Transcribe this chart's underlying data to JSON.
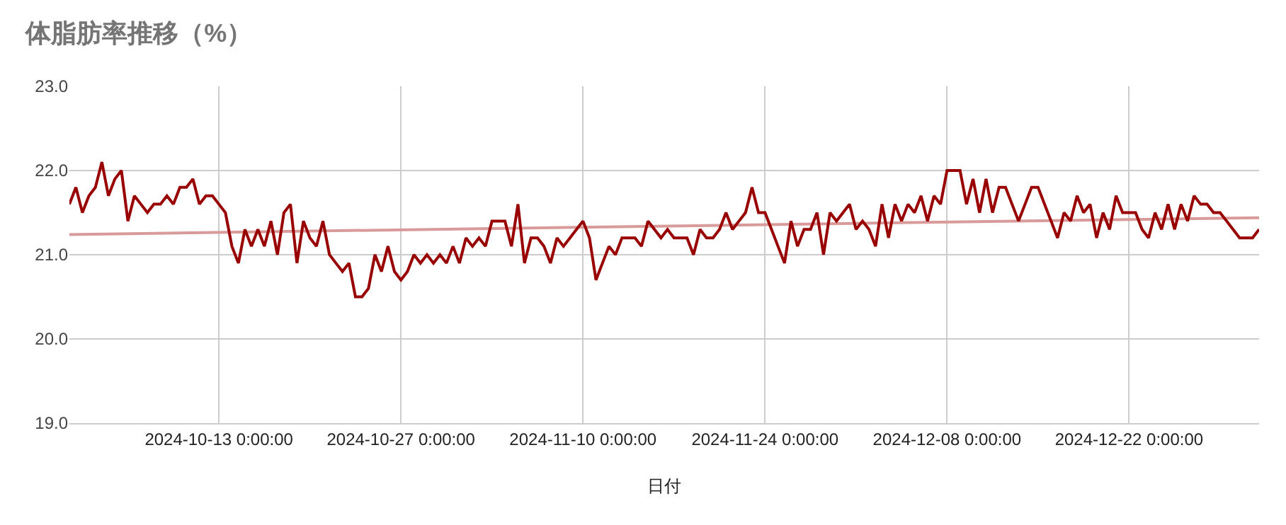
{
  "chart_data": {
    "type": "line",
    "title": "体脂肪率推移（%）",
    "xlabel": "日付",
    "xlim": [
      "2024-10-01T12:00",
      "2025-01-01T00:00"
    ],
    "xticks": [
      {
        "value": "2024-10-13",
        "label": "2024-10-13 0:00:00"
      },
      {
        "value": "2024-10-27",
        "label": "2024-10-27 0:00:00"
      },
      {
        "value": "2024-11-10",
        "label": "2024-11-10 0:00:00"
      },
      {
        "value": "2024-11-24",
        "label": "2024-11-24 0:00:00"
      },
      {
        "value": "2024-12-08",
        "label": "2024-12-08 0:00:00"
      },
      {
        "value": "2024-12-22",
        "label": "2024-12-22 0:00:00"
      }
    ],
    "ylim": [
      19,
      23
    ],
    "yticks": [
      {
        "value": 19,
        "label": "19.0"
      },
      {
        "value": 20,
        "label": "20.0"
      },
      {
        "value": 21,
        "label": "21.0"
      },
      {
        "value": 22,
        "label": "22.0"
      },
      {
        "value": 23,
        "label": "23.0"
      }
    ],
    "grid": true,
    "marker": "none",
    "line_style": "solid",
    "x": [
      "2024-10-01T12:00",
      "2024-10-02T00:00",
      "2024-10-02T12:00",
      "2024-10-03T00:00",
      "2024-10-03T12:00",
      "2024-10-04T00:00",
      "2024-10-04T12:00",
      "2024-10-05T00:00",
      "2024-10-05T12:00",
      "2024-10-06T00:00",
      "2024-10-06T12:00",
      "2024-10-07T00:00",
      "2024-10-07T12:00",
      "2024-10-08T00:00",
      "2024-10-08T12:00",
      "2024-10-09T00:00",
      "2024-10-09T12:00",
      "2024-10-10T00:00",
      "2024-10-10T12:00",
      "2024-10-11T00:00",
      "2024-10-11T12:00",
      "2024-10-12T00:00",
      "2024-10-12T12:00",
      "2024-10-13T00:00",
      "2024-10-13T12:00",
      "2024-10-14T00:00",
      "2024-10-14T12:00",
      "2024-10-15T00:00",
      "2024-10-15T12:00",
      "2024-10-16T00:00",
      "2024-10-16T12:00",
      "2024-10-17T00:00",
      "2024-10-17T12:00",
      "2024-10-18T00:00",
      "2024-10-18T12:00",
      "2024-10-19T00:00",
      "2024-10-19T12:00",
      "2024-10-20T00:00",
      "2024-10-20T12:00",
      "2024-10-21T00:00",
      "2024-10-21T12:00",
      "2024-10-22T00:00",
      "2024-10-22T12:00",
      "2024-10-23T00:00",
      "2024-10-23T12:00",
      "2024-10-24T00:00",
      "2024-10-24T12:00",
      "2024-10-25T00:00",
      "2024-10-25T12:00",
      "2024-10-26T00:00",
      "2024-10-26T12:00",
      "2024-10-27T00:00",
      "2024-10-27T12:00",
      "2024-10-28T00:00",
      "2024-10-28T12:00",
      "2024-10-29T00:00",
      "2024-10-29T12:00",
      "2024-10-30T00:00",
      "2024-10-30T12:00",
      "2024-10-31T00:00",
      "2024-10-31T12:00",
      "2024-11-01T00:00",
      "2024-11-01T12:00",
      "2024-11-02T00:00",
      "2024-11-02T12:00",
      "2024-11-03T00:00",
      "2024-11-03T12:00",
      "2024-11-04T00:00",
      "2024-11-04T12:00",
      "2024-11-05T00:00",
      "2024-11-05T12:00",
      "2024-11-06T00:00",
      "2024-11-06T12:00",
      "2024-11-07T00:00",
      "2024-11-07T12:00",
      "2024-11-08T00:00",
      "2024-11-08T12:00",
      "2024-11-09T00:00",
      "2024-11-09T12:00",
      "2024-11-10T00:00",
      "2024-11-10T12:00",
      "2024-11-11T00:00",
      "2024-11-11T12:00",
      "2024-11-12T00:00",
      "2024-11-12T12:00",
      "2024-11-13T00:00",
      "2024-11-13T12:00",
      "2024-11-14T00:00",
      "2024-11-14T12:00",
      "2024-11-15T00:00",
      "2024-11-15T12:00",
      "2024-11-16T00:00",
      "2024-11-16T12:00",
      "2024-11-17T00:00",
      "2024-11-17T12:00",
      "2024-11-18T00:00",
      "2024-11-18T12:00",
      "2024-11-19T00:00",
      "2024-11-19T12:00",
      "2024-11-20T00:00",
      "2024-11-20T12:00",
      "2024-11-21T00:00",
      "2024-11-21T12:00",
      "2024-11-22T00:00",
      "2024-11-22T12:00",
      "2024-11-23T00:00",
      "2024-11-23T12:00",
      "2024-11-24T00:00",
      "2024-11-24T12:00",
      "2024-11-25T00:00",
      "2024-11-25T12:00",
      "2024-11-26T00:00",
      "2024-11-26T12:00",
      "2024-11-27T00:00",
      "2024-11-27T12:00",
      "2024-11-28T00:00",
      "2024-11-28T12:00",
      "2024-11-29T00:00",
      "2024-11-29T12:00",
      "2024-11-30T00:00",
      "2024-11-30T12:00",
      "2024-12-01T00:00",
      "2024-12-01T12:00",
      "2024-12-02T00:00",
      "2024-12-02T12:00",
      "2024-12-03T00:00",
      "2024-12-03T12:00",
      "2024-12-04T00:00",
      "2024-12-04T12:00",
      "2024-12-05T00:00",
      "2024-12-05T12:00",
      "2024-12-06T00:00",
      "2024-12-06T12:00",
      "2024-12-07T00:00",
      "2024-12-07T12:00",
      "2024-12-08T00:00",
      "2024-12-08T12:00",
      "2024-12-09T00:00",
      "2024-12-09T12:00",
      "2024-12-10T00:00",
      "2024-12-10T12:00",
      "2024-12-11T00:00",
      "2024-12-11T12:00",
      "2024-12-12T00:00",
      "2024-12-12T12:00",
      "2024-12-13T00:00",
      "2024-12-13T12:00",
      "2024-12-14T00:00",
      "2024-12-14T12:00",
      "2024-12-15T00:00",
      "2024-12-15T12:00",
      "2024-12-16T00:00",
      "2024-12-16T12:00",
      "2024-12-17T00:00",
      "2024-12-17T12:00",
      "2024-12-18T00:00",
      "2024-12-18T12:00",
      "2024-12-19T00:00",
      "2024-12-19T12:00",
      "2024-12-20T00:00",
      "2024-12-20T12:00",
      "2024-12-21T00:00",
      "2024-12-21T12:00",
      "2024-12-22T00:00",
      "2024-12-22T12:00",
      "2024-12-23T00:00",
      "2024-12-23T12:00",
      "2024-12-24T00:00",
      "2024-12-24T12:00",
      "2024-12-25T00:00",
      "2024-12-25T12:00",
      "2024-12-26T00:00",
      "2024-12-26T12:00",
      "2024-12-27T00:00",
      "2024-12-27T12:00",
      "2024-12-28T00:00",
      "2024-12-28T12:00",
      "2024-12-29T00:00",
      "2024-12-29T12:00",
      "2024-12-30T00:00",
      "2024-12-30T12:00",
      "2024-12-31T00:00",
      "2024-12-31T12:00",
      "2025-01-01T00:00"
    ],
    "series": [
      {
        "color": "#990000",
        "values": [
          21.6,
          21.8,
          21.5,
          21.7,
          21.8,
          22.1,
          21.7,
          21.9,
          22.0,
          21.4,
          21.7,
          21.6,
          21.5,
          21.6,
          21.6,
          21.7,
          21.6,
          21.8,
          21.8,
          21.9,
          21.6,
          21.7,
          21.7,
          21.6,
          21.5,
          21.1,
          20.9,
          21.3,
          21.1,
          21.3,
          21.1,
          21.4,
          21.0,
          21.5,
          21.6,
          20.9,
          21.4,
          21.2,
          21.1,
          21.4,
          21.0,
          20.9,
          20.8,
          20.9,
          20.5,
          20.5,
          20.6,
          21.0,
          20.8,
          21.1,
          20.8,
          20.7,
          20.8,
          21.0,
          20.9,
          21.0,
          20.9,
          21.0,
          20.9,
          21.1,
          20.9,
          21.2,
          21.1,
          21.2,
          21.1,
          21.4,
          21.4,
          21.4,
          21.1,
          21.6,
          20.9,
          21.2,
          21.2,
          21.1,
          20.9,
          21.2,
          21.1,
          21.2,
          21.3,
          21.4,
          21.2,
          20.7,
          20.9,
          21.1,
          21.0,
          21.2,
          21.2,
          21.2,
          21.1,
          21.4,
          21.3,
          21.2,
          21.3,
          21.2,
          21.2,
          21.2,
          21.0,
          21.3,
          21.2,
          21.2,
          21.3,
          21.5,
          21.3,
          21.4,
          21.5,
          21.8,
          21.5,
          21.5,
          21.3,
          21.1,
          20.9,
          21.4,
          21.1,
          21.3,
          21.3,
          21.5,
          21.0,
          21.5,
          21.4,
          21.5,
          21.6,
          21.3,
          21.4,
          21.3,
          21.1,
          21.6,
          21.2,
          21.6,
          21.4,
          21.6,
          21.5,
          21.7,
          21.4,
          21.7,
          21.6,
          22.0,
          22.0,
          22.0,
          21.6,
          21.9,
          21.5,
          21.9,
          21.5,
          21.8,
          21.8,
          21.6,
          21.4,
          21.6,
          21.8,
          21.8,
          21.6,
          21.4,
          21.2,
          21.5,
          21.4,
          21.7,
          21.5,
          21.6,
          21.2,
          21.5,
          21.3,
          21.7,
          21.5,
          21.5,
          21.5,
          21.3,
          21.2,
          21.5,
          21.3,
          21.6,
          21.3,
          21.6,
          21.4,
          21.7,
          21.6,
          21.6,
          21.5,
          21.5,
          21.4,
          21.3,
          21.2,
          21.2,
          21.2,
          21.3
        ]
      },
      {
        "type": "line",
        "color": "#d99a9a",
        "x": [
          "2024-10-01T12:00",
          "2025-01-01T00:00"
        ],
        "values": [
          21.24,
          21.44
        ]
      }
    ]
  }
}
